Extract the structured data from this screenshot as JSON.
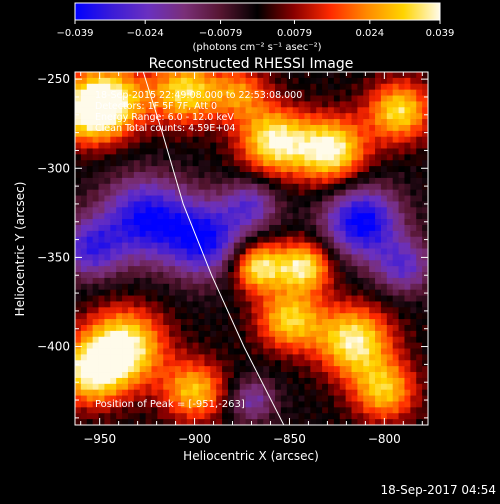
{
  "chart_data": {
    "type": "heatmap",
    "title": "Reconstructed RHESSI Image",
    "xlabel": "Heliocentric X (arcsec)",
    "ylabel": "Heliocentric Y (arcsec)",
    "xlim": [
      -963,
      -777
    ],
    "ylim": [
      -444,
      -246
    ],
    "x_ticks": [
      {
        "value": -950,
        "label": "−950"
      },
      {
        "value": -900,
        "label": "−900"
      },
      {
        "value": -850,
        "label": "−850"
      },
      {
        "value": -800,
        "label": "−800"
      }
    ],
    "y_ticks": [
      {
        "value": -250,
        "label": "−250"
      },
      {
        "value": -300,
        "label": "−300"
      },
      {
        "value": -350,
        "label": "−350"
      },
      {
        "value": -400,
        "label": "−400"
      }
    ],
    "colorbar": {
      "min": -0.039,
      "max": 0.039,
      "ticks": [
        {
          "value": -0.039,
          "label": "−0.039"
        },
        {
          "value": -0.024,
          "label": "−0.024"
        },
        {
          "value": -0.0079,
          "label": "−0.0079"
        },
        {
          "value": 0.0079,
          "label": "0.0079"
        },
        {
          "value": 0.024,
          "label": "0.024"
        },
        {
          "value": 0.039,
          "label": "0.039"
        }
      ],
      "units_label": "(photons cm⁻² s⁻¹ asec⁻²)",
      "colors": [
        "#0000ff",
        "#3a1bd8",
        "#6a30c0",
        "#7a2f78",
        "#551530",
        "#000000",
        "#8a0000",
        "#ff2a00",
        "#ff8a00",
        "#ffd400",
        "#fffbea"
      ]
    },
    "annotations": [
      "18-Sep-2015 22:49:08.000 to 22:53:08.000",
      "Detectors: 1F 5F 7F, Att 0",
      "Energy Range: 6.0 - 12.0 keV",
      "Clean     Total counts: 4.59E+04"
    ],
    "peak_label": "Position of Peak = [-951,-263]",
    "limb_curve": [
      {
        "x": -927,
        "y": -246
      },
      {
        "x": -917,
        "y": -280
      },
      {
        "x": -906,
        "y": -320
      },
      {
        "x": -891,
        "y": -360
      },
      {
        "x": -874,
        "y": -400
      },
      {
        "x": -853,
        "y": -444
      }
    ],
    "sources": [
      {
        "x": -946,
        "y": -262,
        "amp": 1.0,
        "sigma": 14
      },
      {
        "x": -958,
        "y": -270,
        "amp": 0.6,
        "sigma": 12
      },
      {
        "x": -905,
        "y": -257,
        "amp": 0.85,
        "sigma": 13
      },
      {
        "x": -876,
        "y": -258,
        "amp": 0.55,
        "sigma": 11
      },
      {
        "x": -858,
        "y": -285,
        "amp": 0.95,
        "sigma": 13
      },
      {
        "x": -828,
        "y": -290,
        "amp": 1.0,
        "sigma": 13
      },
      {
        "x": -792,
        "y": -268,
        "amp": 0.85,
        "sigma": 12
      },
      {
        "x": -867,
        "y": -355,
        "amp": 0.95,
        "sigma": 10
      },
      {
        "x": -842,
        "y": -355,
        "amp": 0.9,
        "sigma": 10
      },
      {
        "x": -850,
        "y": -385,
        "amp": 0.8,
        "sigma": 12
      },
      {
        "x": -816,
        "y": -397,
        "amp": 0.95,
        "sigma": 14
      },
      {
        "x": -800,
        "y": -425,
        "amp": 0.75,
        "sigma": 12
      },
      {
        "x": -937,
        "y": -400,
        "amp": 1.0,
        "sigma": 15
      },
      {
        "x": -955,
        "y": -415,
        "amp": 0.85,
        "sigma": 13
      },
      {
        "x": -900,
        "y": -425,
        "amp": 0.75,
        "sigma": 12
      },
      {
        "x": -926,
        "y": -328,
        "amp": -0.9,
        "sigma": 16
      },
      {
        "x": -894,
        "y": -340,
        "amp": -0.9,
        "sigma": 15
      },
      {
        "x": -812,
        "y": -330,
        "amp": -1.0,
        "sigma": 14
      },
      {
        "x": -955,
        "y": -345,
        "amp": -0.7,
        "sigma": 12
      },
      {
        "x": -870,
        "y": -320,
        "amp": -0.55,
        "sigma": 10
      },
      {
        "x": -790,
        "y": -355,
        "amp": -0.6,
        "sigma": 11
      },
      {
        "x": -870,
        "y": -430,
        "amp": -0.5,
        "sigma": 9
      }
    ]
  },
  "footer": {
    "timestamp": "18-Sep-2017 04:54"
  }
}
